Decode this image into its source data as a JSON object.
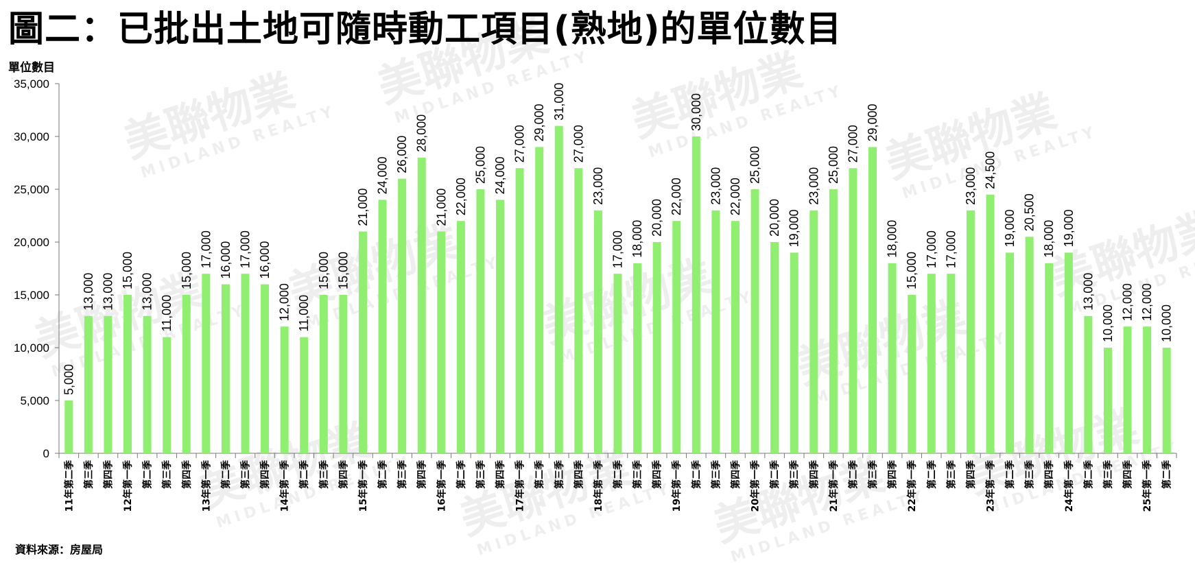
{
  "page": {
    "title": "圖二：已批出土地可隨時動工項目(熟地)的單位數目",
    "source": "資料來源：房屋局"
  },
  "watermark": {
    "brand": "美聯物業",
    "brand_en": "MIDLAND REALTY"
  },
  "colors": {
    "bar": "#90EE70",
    "axis": "#777777",
    "text": "#000000"
  },
  "chart_data": {
    "type": "bar",
    "title": "圖二：已批出土地可隨時動工項目(熟地)的單位數目",
    "ylabel": "單位數目",
    "xlabel": "",
    "ylim": [
      0,
      35000
    ],
    "yticks": [
      0,
      5000,
      10000,
      15000,
      20000,
      25000,
      30000,
      35000
    ],
    "ytick_labels": [
      "0",
      "5,000",
      "10,000",
      "15,000",
      "20,000",
      "25,000",
      "30,000",
      "35,000"
    ],
    "grid": false,
    "legend": "none",
    "categories": [
      "11年第二季",
      "第三季",
      "第四季",
      "12年第一季",
      "第二季",
      "第三季",
      "第四季",
      "13年第一季",
      "第二季",
      "第三季",
      "第四季",
      "14年第一季",
      "第二季",
      "第三季",
      "第四季",
      "15年第一季",
      "第二季",
      "第三季",
      "第四季",
      "16年第一季",
      "第二季",
      "第三季",
      "第四季",
      "17年第一季",
      "第二季",
      "第三季",
      "第四季",
      "18年第一季",
      "第二季",
      "第三季",
      "第四季",
      "19年第一季",
      "第二季",
      "第三季",
      "第四季",
      "20年第一季",
      "第二季",
      "第三季",
      "第四季",
      "21年第一季",
      "第二季",
      "第三季",
      "第四季",
      "22年第一季",
      "第二季",
      "第三季",
      "第四季",
      "23年第一季",
      "第二季",
      "第三季",
      "第四季",
      "24年第一季",
      "第二季",
      "第三季",
      "第四季",
      "25年第一季",
      "第二季"
    ],
    "values": [
      5000,
      13000,
      13000,
      15000,
      13000,
      11000,
      15000,
      17000,
      16000,
      17000,
      16000,
      12000,
      11000,
      15000,
      15000,
      21000,
      24000,
      26000,
      28000,
      21000,
      22000,
      25000,
      24000,
      27000,
      29000,
      31000,
      27000,
      23000,
      17000,
      18000,
      20000,
      22000,
      30000,
      23000,
      22000,
      25000,
      20000,
      19000,
      23000,
      25000,
      27000,
      29000,
      18000,
      15000,
      17000,
      17000,
      23000,
      24500,
      19000,
      20500,
      18000,
      19000,
      13000,
      10000,
      12000,
      12000,
      10000
    ],
    "data_labels": [
      "5,000",
      "13,000",
      "13,000",
      "15,000",
      "13,000",
      "11,000",
      "15,000",
      "17,000",
      "16,000",
      "17,000",
      "16,000",
      "12,000",
      "11,000",
      "15,000",
      "15,000",
      "21,000",
      "24,000",
      "26,000",
      "28,000",
      "21,000",
      "22,000",
      "25,000",
      "24,000",
      "27,000",
      "29,000",
      "31,000",
      "27,000",
      "23,000",
      "17,000",
      "18,000",
      "20,000",
      "22,000",
      "30,000",
      "23,000",
      "22,000",
      "25,000",
      "20,000",
      "19,000",
      "23,000",
      "25,000",
      "27,000",
      "29,000",
      "18,000",
      "15,000",
      "17,000",
      "17,000",
      "23,000",
      "24,500",
      "19,000",
      "20,500",
      "18,000",
      "19,000",
      "13,000",
      "10,000",
      "12,000",
      "12,000",
      "10,000"
    ]
  }
}
